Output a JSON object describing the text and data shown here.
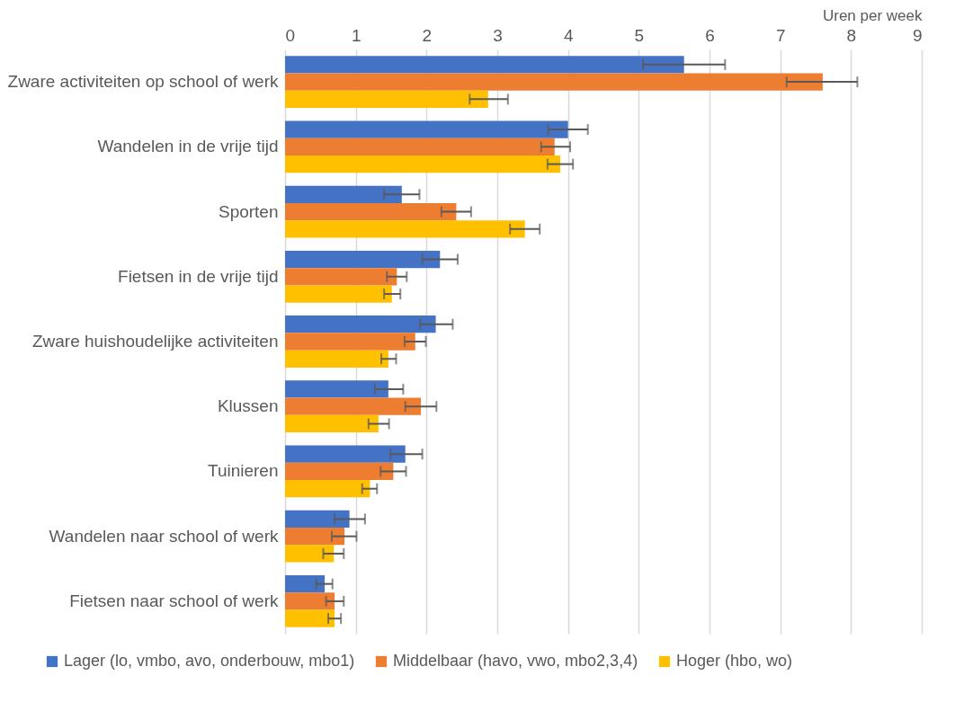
{
  "chart_data": {
    "type": "bar",
    "orientation": "horizontal",
    "xlabel": "Uren per week",
    "categories": [
      "Zware activiteiten op school of werk",
      "Wandelen in de vrije tijd",
      "Sporten",
      "Fietsen in de vrije tijd",
      "Zware huishoudelijke activiteiten",
      "Klussen",
      "Tuinieren",
      "Wandelen naar school of werk",
      "Fietsen naar school of werk"
    ],
    "series": [
      {
        "name": "Lager (lo, vmbo, avo, onderbouw, mbo1)",
        "color": "#4472c4",
        "values": [
          5.64,
          4.0,
          1.65,
          2.19,
          2.13,
          1.46,
          1.7,
          0.91,
          0.56
        ],
        "errors": [
          [
            5.06,
            6.22
          ],
          [
            3.72,
            4.28
          ],
          [
            1.4,
            1.9
          ],
          [
            1.94,
            2.44
          ],
          [
            1.91,
            2.37
          ],
          [
            1.27,
            1.67
          ],
          [
            1.49,
            1.94
          ],
          [
            0.7,
            1.13
          ],
          [
            0.44,
            0.67
          ]
        ]
      },
      {
        "name": "Middelbaar (havo, vwo, mbo2,3,4)",
        "color": "#ed7d31",
        "values": [
          7.6,
          3.81,
          2.42,
          1.58,
          1.84,
          1.92,
          1.53,
          0.84,
          0.7
        ],
        "errors": [
          [
            7.09,
            8.09
          ],
          [
            3.62,
            4.03
          ],
          [
            2.21,
            2.63
          ],
          [
            1.44,
            1.72
          ],
          [
            1.69,
            1.99
          ],
          [
            1.7,
            2.14
          ],
          [
            1.35,
            1.71
          ],
          [
            0.66,
            1.01
          ],
          [
            0.58,
            0.83
          ]
        ]
      },
      {
        "name": "Hoger (hbo, wo)",
        "color": "#ffc000",
        "values": [
          2.87,
          3.89,
          3.39,
          1.51,
          1.46,
          1.32,
          1.2,
          0.69,
          0.7
        ],
        "errors": [
          [
            2.61,
            3.15
          ],
          [
            3.71,
            4.07
          ],
          [
            3.18,
            3.6
          ],
          [
            1.4,
            1.63
          ],
          [
            1.36,
            1.57
          ],
          [
            1.18,
            1.47
          ],
          [
            1.09,
            1.3
          ],
          [
            0.54,
            0.83
          ],
          [
            0.61,
            0.79
          ]
        ]
      }
    ],
    "xlim": [
      0,
      9
    ],
    "xticks": [
      0,
      1,
      2,
      3,
      4,
      5,
      6,
      7,
      8,
      9
    ],
    "grid": "x",
    "legend": "bottom"
  }
}
